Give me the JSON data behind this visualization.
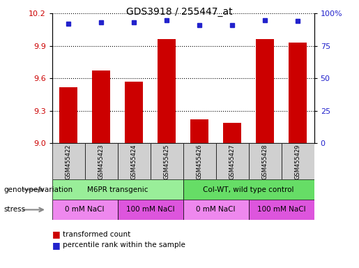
{
  "title": "GDS3918 / 255447_at",
  "samples": [
    "GSM455422",
    "GSM455423",
    "GSM455424",
    "GSM455425",
    "GSM455426",
    "GSM455427",
    "GSM455428",
    "GSM455429"
  ],
  "bar_values": [
    9.52,
    9.67,
    9.57,
    9.96,
    9.22,
    9.19,
    9.96,
    9.93
  ],
  "percentile_values": [
    92,
    93,
    93,
    95,
    91,
    91,
    95,
    94
  ],
  "ylim_left": [
    9.0,
    10.2
  ],
  "ylim_right": [
    0,
    100
  ],
  "yticks_left": [
    9.0,
    9.3,
    9.6,
    9.9,
    10.2
  ],
  "yticks_right": [
    0,
    25,
    50,
    75,
    100
  ],
  "bar_color": "#cc0000",
  "dot_color": "#2222cc",
  "bar_width": 0.55,
  "genotype_groups": [
    {
      "label": "M6PR transgenic",
      "start": 0,
      "end": 4,
      "color": "#99ee99"
    },
    {
      "label": "Col-WT, wild type control",
      "start": 4,
      "end": 8,
      "color": "#66dd66"
    }
  ],
  "stress_groups": [
    {
      "label": "0 mM NaCl",
      "start": 0,
      "end": 2,
      "color": "#ee88ee"
    },
    {
      "label": "100 mM NaCl",
      "start": 2,
      "end": 4,
      "color": "#dd55dd"
    },
    {
      "label": "0 mM NaCl",
      "start": 4,
      "end": 6,
      "color": "#ee88ee"
    },
    {
      "label": "100 mM NaCl",
      "start": 6,
      "end": 8,
      "color": "#dd55dd"
    }
  ],
  "left_label_color": "#cc0000",
  "right_label_color": "#2222cc",
  "sample_box_color": "#d0d0d0",
  "legend_red_label": "transformed count",
  "legend_blue_label": "percentile rank within the sample",
  "genotype_label": "genotype/variation",
  "stress_label": "stress"
}
